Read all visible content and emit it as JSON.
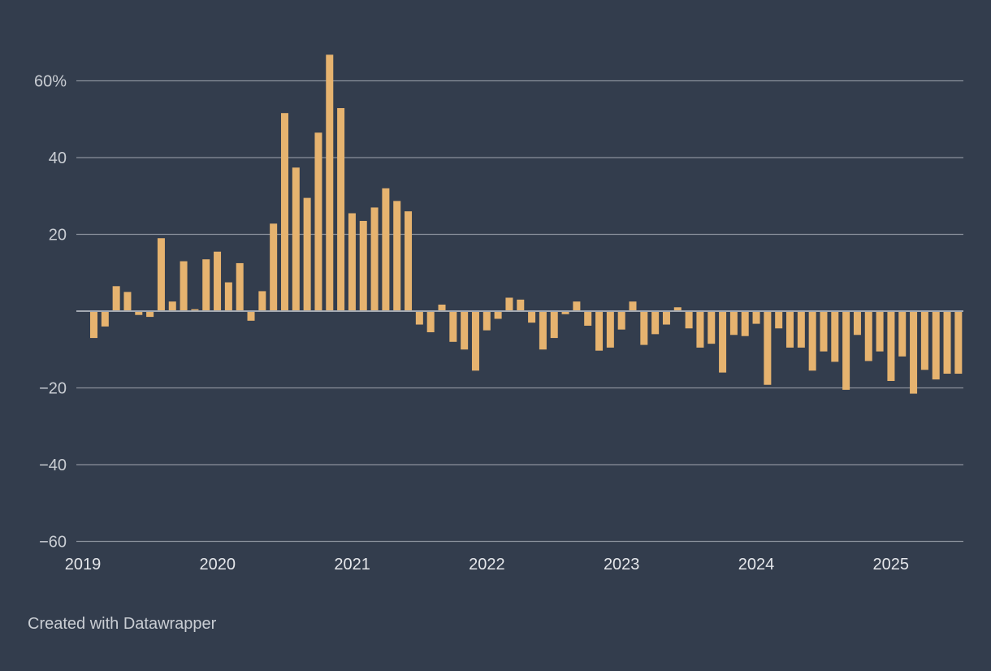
{
  "chart_data": {
    "type": "bar",
    "title": "",
    "xlabel": "",
    "ylabel": "",
    "ylim": [
      -60,
      70
    ],
    "y_ticks": [
      {
        "value": 60,
        "label": "60%"
      },
      {
        "value": 40,
        "label": "40"
      },
      {
        "value": 20,
        "label": "20"
      },
      {
        "value": 0,
        "label": ""
      },
      {
        "value": -20,
        "label": "−20"
      },
      {
        "value": -40,
        "label": "−40"
      },
      {
        "value": -60,
        "label": "−60"
      }
    ],
    "x_ticks": [
      "2019",
      "2020",
      "2021",
      "2022",
      "2023",
      "2024",
      "2025"
    ],
    "start_year": 2019,
    "bar_color": "#e6b36f",
    "grid": true,
    "values": [
      -7,
      -4,
      6.5,
      5,
      -1,
      -1.5,
      19,
      2.5,
      13,
      0.5,
      13.5,
      15.5,
      7.5,
      12.5,
      -2.5,
      5.2,
      22.8,
      51.6,
      37.4,
      29.5,
      46.5,
      66.8,
      52.9,
      25.5,
      23.5,
      27,
      32,
      28.7,
      26,
      -3.5,
      -5.5,
      1.7,
      -8,
      -10,
      -15.5,
      -5,
      -2,
      3.5,
      3,
      -3,
      -10,
      -7,
      -0.8,
      2.5,
      -3.8,
      -10.3,
      -9.5,
      -4.8,
      2.5,
      -8.8,
      -6,
      -3.5,
      1,
      -4.5,
      -9.5,
      -8.5,
      -16,
      -6.2,
      -6.5,
      -3.3,
      -19.2,
      -4.5,
      -9.5,
      -9.5,
      -15.5,
      -10.5,
      -13.2,
      -20.5,
      -6.2,
      -13,
      -10.5,
      -18.2,
      -11.8,
      -21.5,
      -15.3,
      -17.8,
      -16.3,
      -16.3
    ]
  },
  "footer": {
    "credit": "Created with Datawrapper"
  }
}
